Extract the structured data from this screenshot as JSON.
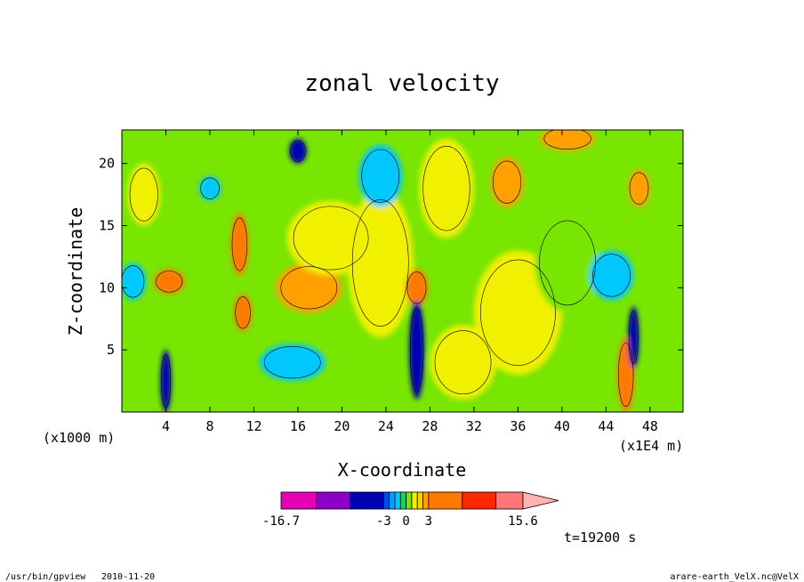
{
  "chart_data": {
    "type": "heatmap",
    "title": "zonal velocity",
    "xlabel": "X-coordinate",
    "ylabel": "Z-coordinate",
    "x_unit_label": "(x1E4 m)",
    "y_unit_label": "(x1000 m)",
    "xlim": [
      0,
      51
    ],
    "ylim": [
      0,
      22.7
    ],
    "x_ticks": [
      4,
      8,
      12,
      16,
      20,
      24,
      28,
      32,
      36,
      40,
      44,
      48
    ],
    "y_ticks": [
      5,
      10,
      15,
      20
    ],
    "colorbar": {
      "min_label": "-16.7",
      "max_label": "15.6",
      "tick_labels": [
        "-16.7",
        "-3",
        "0",
        "3",
        "15.6"
      ],
      "tick_values": [
        -16.7,
        -3,
        0,
        3,
        15.6
      ],
      "band_colors": [
        "#e600b4",
        "#8c00c8",
        "#0000b4",
        "#0050e6",
        "#00a0ff",
        "#00c8ff",
        "#00e050",
        "#78e600",
        "#f0f000",
        "#ffd200",
        "#ffa000",
        "#ff7800",
        "#ff2800",
        "#ff7878",
        "#ffb4b4"
      ],
      "extend": "max"
    },
    "field": {
      "background_level": "#78e600",
      "features": [
        {
          "x": 4.3,
          "z": 10.5,
          "level": "#ff7800",
          "rx": 1.4,
          "rz": 1.0
        },
        {
          "x": 4.0,
          "z": 2.5,
          "level": "#0000b4",
          "rx": 0.5,
          "rz": 2.5
        },
        {
          "x": 1.0,
          "z": 10.5,
          "level": "#00c8ff",
          "rx": 1.2,
          "rz": 1.5
        },
        {
          "x": 10.7,
          "z": 13.5,
          "level": "#ff7800",
          "rx": 0.8,
          "rz": 2.5
        },
        {
          "x": 11.0,
          "z": 8.0,
          "level": "#ff7800",
          "rx": 0.8,
          "rz": 1.5
        },
        {
          "x": 17.0,
          "z": 10.0,
          "level": "#ffa000",
          "rx": 3.0,
          "rz": 2.0
        },
        {
          "x": 19.0,
          "z": 14.0,
          "level": "#f0f000",
          "rx": 4.0,
          "rz": 3.0
        },
        {
          "x": 15.5,
          "z": 4.0,
          "level": "#00c8ff",
          "rx": 3.0,
          "rz": 1.5
        },
        {
          "x": 16.0,
          "z": 21.0,
          "level": "#0000b4",
          "rx": 0.8,
          "rz": 1.0
        },
        {
          "x": 23.5,
          "z": 12.0,
          "level": "#f0f000",
          "rx": 3.0,
          "rz": 6.0
        },
        {
          "x": 23.5,
          "z": 19.0,
          "level": "#00c8ff",
          "rx": 2.0,
          "rz": 2.5
        },
        {
          "x": 26.8,
          "z": 10.0,
          "level": "#ff7800",
          "rx": 1.0,
          "rz": 1.5
        },
        {
          "x": 26.8,
          "z": 5.0,
          "level": "#0000b4",
          "rx": 0.7,
          "rz": 4.0
        },
        {
          "x": 29.5,
          "z": 18.0,
          "level": "#f0f000",
          "rx": 2.5,
          "rz": 4.0
        },
        {
          "x": 35.0,
          "z": 18.5,
          "level": "#ffa000",
          "rx": 1.5,
          "rz": 2.0
        },
        {
          "x": 36.0,
          "z": 8.0,
          "level": "#f0f000",
          "rx": 4.0,
          "rz": 5.0
        },
        {
          "x": 40.5,
          "z": 12.0,
          "level": "#78e600",
          "rx": 3.0,
          "rz": 4.0
        },
        {
          "x": 44.5,
          "z": 11.0,
          "level": "#00c8ff",
          "rx": 2.0,
          "rz": 2.0
        },
        {
          "x": 45.8,
          "z": 3.0,
          "level": "#ff7800",
          "rx": 0.8,
          "rz": 3.0
        },
        {
          "x": 46.5,
          "z": 6.0,
          "level": "#0000b4",
          "rx": 0.5,
          "rz": 2.5
        },
        {
          "x": 47.0,
          "z": 18.0,
          "level": "#ffa000",
          "rx": 1.0,
          "rz": 1.5
        },
        {
          "x": 40.5,
          "z": 22.0,
          "level": "#ffa000",
          "rx": 2.5,
          "rz": 1.0
        },
        {
          "x": 8.0,
          "z": 18.0,
          "level": "#00c8ff",
          "rx": 1.0,
          "rz": 1.0
        },
        {
          "x": 2.0,
          "z": 17.5,
          "level": "#f0f000",
          "rx": 1.5,
          "rz": 2.5
        },
        {
          "x": 31.0,
          "z": 4.0,
          "level": "#f0f000",
          "rx": 3.0,
          "rz": 3.0
        }
      ]
    }
  },
  "annotations": {
    "time": "t=19200 s",
    "footer_left_program": "/usr/bin/gpview",
    "footer_left_date": "2010-11-20",
    "footer_right": "arare-earth_VelX.nc@VelX"
  }
}
